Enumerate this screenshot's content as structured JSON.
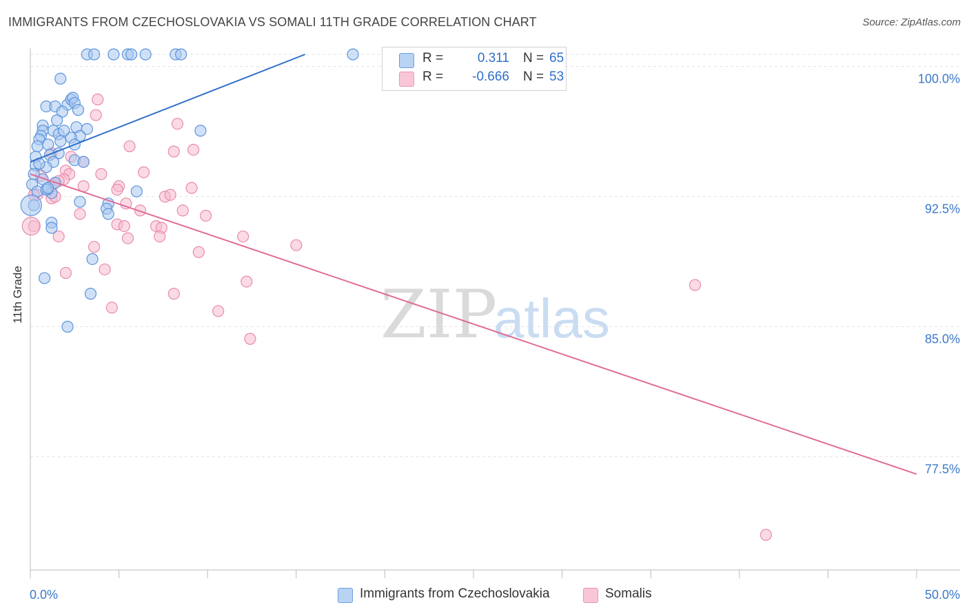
{
  "title": "IMMIGRANTS FROM CZECHOSLOVAKIA VS SOMALI 11TH GRADE CORRELATION CHART",
  "source": "Source: ZipAtlas.com",
  "watermark": {
    "zip": "ZIP",
    "atlas": "atlas"
  },
  "colors": {
    "blue_fill": "#a9c8f0",
    "blue_stroke": "#5b93dc",
    "blue_line": "#2f6fc9",
    "pink_fill": "#f6bcd0",
    "pink_stroke": "#e98aab",
    "pink_line": "#e06a98",
    "axis_text": "#3b78c8",
    "grid": "#e2e2e2"
  },
  "legend": {
    "rows": [
      {
        "r_label": "R =",
        "r_value": "0.311",
        "n_label": "N =",
        "n_value": "65"
      },
      {
        "r_label": "R =",
        "r_value": "-0.666",
        "n_label": "N =",
        "n_value": "53"
      }
    ]
  },
  "bottom_legend": [
    "Immigrants from Czechoslovakia",
    "Somalis"
  ],
  "chart_data": {
    "type": "scatter",
    "title": "IMMIGRANTS FROM CZECHOSLOVAKIA VS SOMALI 11TH GRADE CORRELATION CHART",
    "xlabel": "",
    "ylabel": "11th Grade",
    "xlim": [
      0,
      50
    ],
    "ylim": [
      70.5,
      101
    ],
    "x_tick_labels": {
      "left": "0.0%",
      "right": "50.0%"
    },
    "y_ticks": [
      {
        "value": 100,
        "label": "100.0%"
      },
      {
        "value": 92.5,
        "label": "92.5%"
      },
      {
        "value": 85,
        "label": "85.0%"
      },
      {
        "value": 77.5,
        "label": "77.5%"
      }
    ],
    "series": [
      {
        "name": "Immigrants from Czechoslovakia",
        "r": 0.311,
        "n": 65,
        "trend": {
          "x0": 0,
          "y0": 94.5,
          "x1": 15.5,
          "y1": 100.7
        },
        "points": [
          [
            3.2,
            100.7
          ],
          [
            3.6,
            100.7
          ],
          [
            4.7,
            100.7
          ],
          [
            5.5,
            100.7
          ],
          [
            5.7,
            100.7
          ],
          [
            6.5,
            100.7
          ],
          [
            8.2,
            100.7
          ],
          [
            8.5,
            100.7
          ],
          [
            18.2,
            100.7
          ],
          [
            1.7,
            99.3
          ],
          [
            0.9,
            97.7
          ],
          [
            1.4,
            97.7
          ],
          [
            2.1,
            97.8
          ],
          [
            2.3,
            98.1
          ],
          [
            2.4,
            98.2
          ],
          [
            2.5,
            97.9
          ],
          [
            1.8,
            97.4
          ],
          [
            2.7,
            97.5
          ],
          [
            0.7,
            96.6
          ],
          [
            1.5,
            96.9
          ],
          [
            2.6,
            96.5
          ],
          [
            1.3,
            96.3
          ],
          [
            0.7,
            96.3
          ],
          [
            0.6,
            96.0
          ],
          [
            1.6,
            96.1
          ],
          [
            1.9,
            96.3
          ],
          [
            3.2,
            96.4
          ],
          [
            2.8,
            96.0
          ],
          [
            2.3,
            95.9
          ],
          [
            9.6,
            96.3
          ],
          [
            0.5,
            95.8
          ],
          [
            1.7,
            95.7
          ],
          [
            1.0,
            95.5
          ],
          [
            0.4,
            95.4
          ],
          [
            2.5,
            95.5
          ],
          [
            1.6,
            95.0
          ],
          [
            0.3,
            94.8
          ],
          [
            1.1,
            94.9
          ],
          [
            2.5,
            94.6
          ],
          [
            3.0,
            94.5
          ],
          [
            1.3,
            94.5
          ],
          [
            0.3,
            94.3
          ],
          [
            0.9,
            94.2
          ],
          [
            0.5,
            94.4
          ],
          [
            0.7,
            93.5
          ],
          [
            1.4,
            93.3
          ],
          [
            0.1,
            93.2
          ],
          [
            1.0,
            92.9
          ],
          [
            1.2,
            92.7
          ],
          [
            6.0,
            92.8
          ],
          [
            0.2,
            92.0
          ],
          [
            2.8,
            92.2
          ],
          [
            4.4,
            92.1
          ],
          [
            4.3,
            91.8
          ],
          [
            4.4,
            91.5
          ],
          [
            1.2,
            91.0
          ],
          [
            1.2,
            90.7
          ],
          [
            3.5,
            88.9
          ],
          [
            0.8,
            87.8
          ],
          [
            3.4,
            86.9
          ],
          [
            2.1,
            85.0
          ],
          [
            0.4,
            92.8
          ],
          [
            0.9,
            92.9
          ],
          [
            0.2,
            93.8
          ],
          [
            1.0,
            93.0
          ]
        ]
      },
      {
        "name": "Somalis",
        "r": -0.666,
        "n": 53,
        "trend": {
          "x0": 0,
          "y0": 93.8,
          "x1": 50,
          "y1": 76.5
        },
        "points": [
          [
            3.8,
            98.1
          ],
          [
            3.7,
            97.2
          ],
          [
            8.3,
            96.7
          ],
          [
            5.6,
            95.4
          ],
          [
            8.1,
            95.1
          ],
          [
            9.2,
            95.2
          ],
          [
            1.2,
            95.0
          ],
          [
            2.3,
            94.8
          ],
          [
            3.0,
            94.5
          ],
          [
            2.0,
            94.0
          ],
          [
            4.0,
            93.8
          ],
          [
            6.4,
            93.9
          ],
          [
            0.6,
            93.7
          ],
          [
            2.2,
            93.8
          ],
          [
            1.9,
            93.5
          ],
          [
            1.3,
            93.2
          ],
          [
            3.0,
            93.1
          ],
          [
            5.0,
            93.1
          ],
          [
            4.9,
            92.9
          ],
          [
            9.1,
            93.0
          ],
          [
            7.6,
            92.5
          ],
          [
            7.9,
            92.6
          ],
          [
            1.2,
            92.4
          ],
          [
            0.4,
            92.6
          ],
          [
            1.4,
            92.5
          ],
          [
            5.4,
            92.1
          ],
          [
            6.2,
            91.7
          ],
          [
            8.6,
            91.7
          ],
          [
            2.8,
            91.5
          ],
          [
            9.9,
            91.4
          ],
          [
            4.9,
            90.9
          ],
          [
            5.3,
            90.8
          ],
          [
            7.1,
            90.8
          ],
          [
            7.4,
            90.7
          ],
          [
            1.6,
            90.2
          ],
          [
            5.5,
            90.1
          ],
          [
            7.3,
            90.2
          ],
          [
            12.0,
            90.2
          ],
          [
            15.0,
            89.7
          ],
          [
            3.6,
            89.6
          ],
          [
            9.5,
            89.3
          ],
          [
            4.2,
            88.3
          ],
          [
            2.0,
            88.1
          ],
          [
            12.2,
            87.6
          ],
          [
            37.5,
            87.4
          ],
          [
            8.1,
            86.9
          ],
          [
            4.6,
            86.1
          ],
          [
            10.6,
            85.9
          ],
          [
            12.4,
            84.3
          ],
          [
            41.5,
            73.0
          ],
          [
            0.2,
            90.8
          ],
          [
            0.2,
            92.6
          ],
          [
            1.6,
            93.4
          ]
        ]
      }
    ]
  }
}
